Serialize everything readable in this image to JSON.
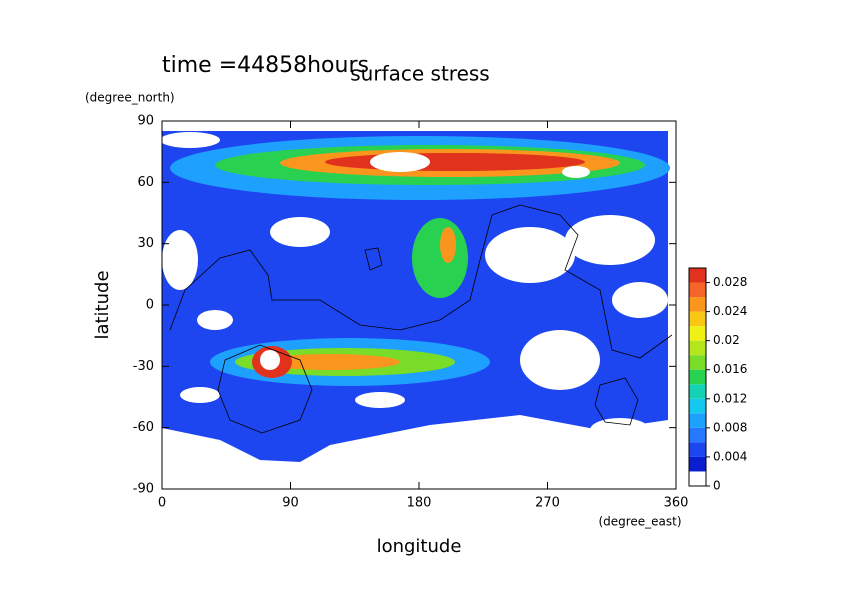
{
  "chart_data": {
    "type": "contour",
    "title": "surface stress",
    "annotation": "time =44858hours",
    "xlabel": "longitude",
    "ylabel": "latitude",
    "x_unit": "(degree_east)",
    "y_unit": "(degree_north)",
    "xlim": [
      0,
      360
    ],
    "ylim": [
      -90,
      90
    ],
    "xticks": [
      0,
      90,
      180,
      270,
      360
    ],
    "yticks": [
      -90,
      -60,
      -30,
      0,
      30,
      60,
      90
    ],
    "colorbar": {
      "levels": [
        0,
        0.002,
        0.004,
        0.006,
        0.008,
        0.01,
        0.012,
        0.014,
        0.016,
        0.018,
        0.02,
        0.022,
        0.024,
        0.026,
        0.028,
        0.03
      ],
      "colors": [
        "#ffffff",
        "#0a1ecf",
        "#1e46f0",
        "#2878ff",
        "#1ea0ff",
        "#14c8f0",
        "#14d2b4",
        "#28d250",
        "#78dc28",
        "#b4e61e",
        "#f0f014",
        "#fac814",
        "#fa961e",
        "#f56428",
        "#e1321e"
      ],
      "ticks": [
        0,
        0.004,
        0.008,
        0.012,
        0.016,
        0.02,
        0.024,
        0.028
      ]
    }
  }
}
